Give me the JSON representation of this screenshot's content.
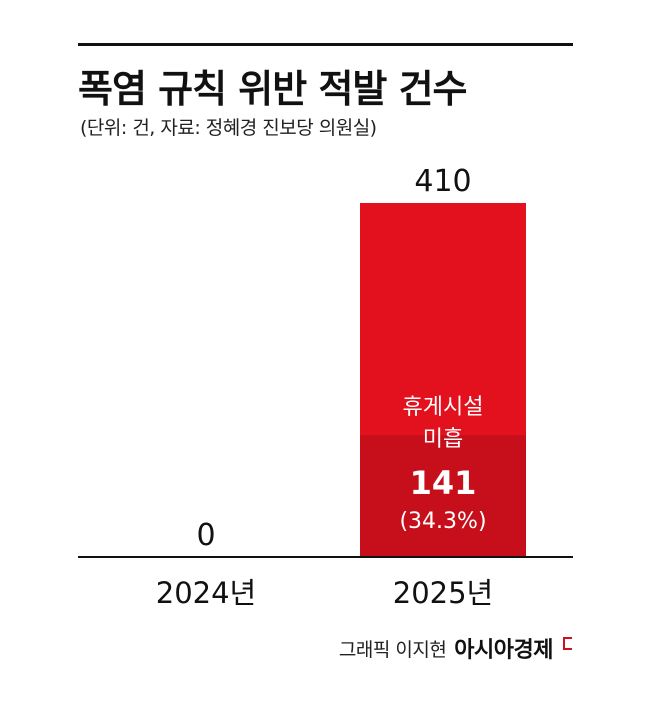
{
  "chart_data": {
    "type": "bar",
    "title": "폭염 규칙 위반 적발 건수",
    "subtitle": "(단위: 건, 자료: 정혜경 진보당 의원실)",
    "categories": [
      "2024년",
      "2025년"
    ],
    "values": [
      0,
      410
    ],
    "value_labels": [
      "0",
      "410"
    ],
    "ylim": [
      0,
      410
    ],
    "grid": false,
    "legend": "none",
    "segment": {
      "category": "2025년",
      "label_line1": "휴게시설",
      "label_line2": "미흡",
      "value": 141,
      "value_label": "141",
      "share_label": "(34.3%)"
    },
    "colors": {
      "bar": "#e3111e",
      "segment": "#c70f1b",
      "text_on_bar": "#ffffff",
      "baseline": "#111111"
    }
  },
  "credit": {
    "graphic": "그래픽 이지현",
    "brand": "아시아경제"
  }
}
